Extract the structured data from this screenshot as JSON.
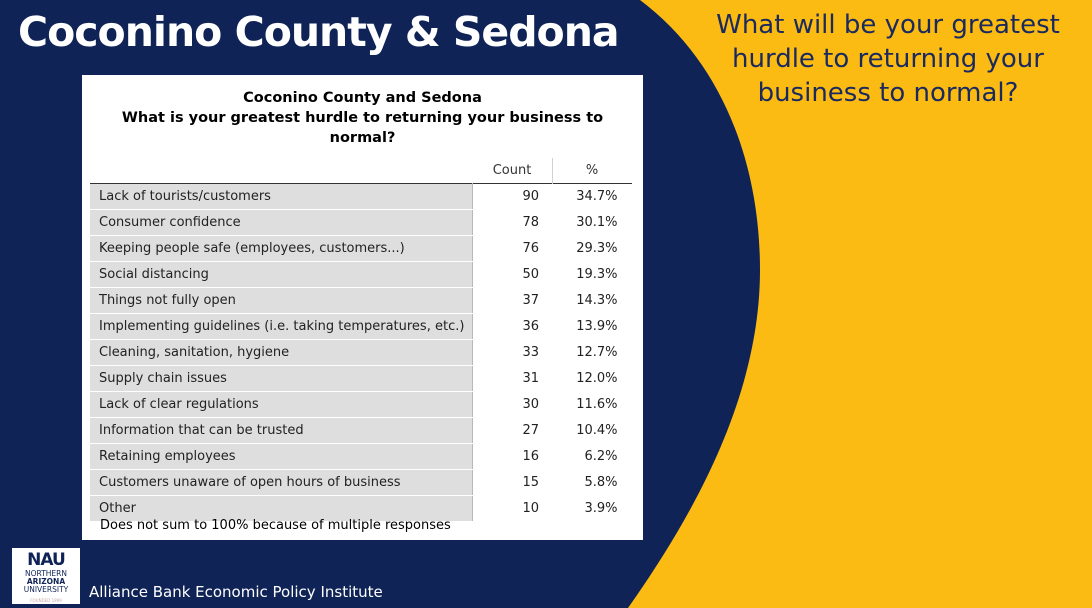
{
  "slide": {
    "title": "Coconino County & Sedona",
    "question": "What will be your greatest hurdle to returning your business to normal?",
    "institute": "Alliance Bank Economic Policy Institute",
    "colors": {
      "navy": "#0f2356",
      "yellow": "#fbbb12",
      "white": "#ffffff"
    }
  },
  "logo": {
    "acronym": "NAU",
    "line1": "NORTHERN",
    "line2": "ARIZONA",
    "line3": "UNIVERSITY",
    "founded": "FOUNDED 1899"
  },
  "table": {
    "title_line1": "Coconino County and Sedona",
    "title_line2": "What is your greatest hurdle to returning your business to normal?",
    "col_count": "Count",
    "col_pct": "%",
    "note": "Does not sum to 100% because of multiple responses",
    "rows": [
      {
        "label": "Lack of tourists/customers",
        "count": "90",
        "pct": "34.7%"
      },
      {
        "label": "Consumer confidence",
        "count": "78",
        "pct": "30.1%"
      },
      {
        "label": "Keeping people safe (employees, customers...)",
        "count": "76",
        "pct": "29.3%"
      },
      {
        "label": "Social distancing",
        "count": "50",
        "pct": "19.3%"
      },
      {
        "label": "Things not fully open",
        "count": "37",
        "pct": "14.3%"
      },
      {
        "label": "Implementing guidelines (i.e. taking temperatures, etc.)",
        "count": "36",
        "pct": "13.9%"
      },
      {
        "label": "Cleaning, sanitation, hygiene",
        "count": "33",
        "pct": "12.7%"
      },
      {
        "label": "Supply chain issues",
        "count": "31",
        "pct": "12.0%"
      },
      {
        "label": "Lack of clear regulations",
        "count": "30",
        "pct": "11.6%"
      },
      {
        "label": "Information that can be trusted",
        "count": "27",
        "pct": "10.4%"
      },
      {
        "label": "Retaining employees",
        "count": "16",
        "pct": "6.2%"
      },
      {
        "label": "Customers unaware of open hours of business",
        "count": "15",
        "pct": "5.8%"
      },
      {
        "label": "Other",
        "count": "10",
        "pct": "3.9%"
      }
    ]
  }
}
